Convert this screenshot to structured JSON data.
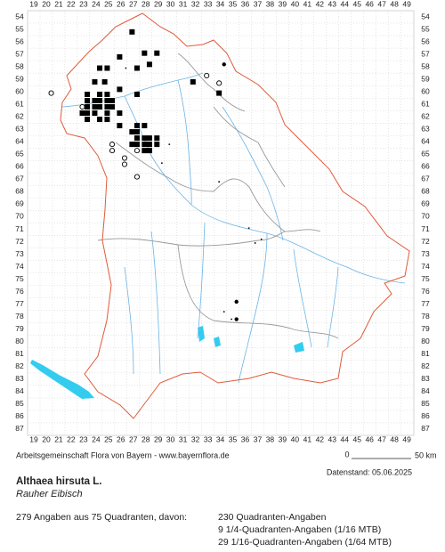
{
  "map": {
    "columns": [
      19,
      20,
      21,
      22,
      23,
      24,
      25,
      26,
      27,
      28,
      29,
      30,
      31,
      32,
      33,
      34,
      35,
      36,
      37,
      38,
      39,
      40,
      41,
      42,
      43,
      44,
      45,
      46,
      47,
      48,
      49
    ],
    "rows": [
      54,
      55,
      56,
      57,
      58,
      59,
      60,
      61,
      62,
      63,
      64,
      65,
      66,
      67,
      68,
      69,
      70,
      71,
      72,
      73,
      74,
      75,
      76,
      77,
      78,
      79,
      80,
      81,
      82,
      83,
      84,
      85,
      86,
      87
    ],
    "records": [
      {
        "kind": "square",
        "col": 26.9,
        "row": 55.2
      },
      {
        "kind": "square",
        "col": 27.9,
        "row": 56.9
      },
      {
        "kind": "square",
        "col": 28.9,
        "row": 56.9
      },
      {
        "kind": "square",
        "col": 25.9,
        "row": 57.2
      },
      {
        "kind": "square",
        "col": 28.3,
        "row": 57.8
      },
      {
        "kind": "square",
        "col": 24.3,
        "row": 58.1
      },
      {
        "kind": "square",
        "col": 24.9,
        "row": 58.1
      },
      {
        "kind": "square",
        "col": 27.3,
        "row": 58.1
      },
      {
        "kind": "square",
        "col": 31.8,
        "row": 59.2
      },
      {
        "kind": "square",
        "col": 24.7,
        "row": 59.2
      },
      {
        "kind": "square",
        "col": 23.9,
        "row": 59.2
      },
      {
        "kind": "square",
        "col": 23.3,
        "row": 60.2
      },
      {
        "kind": "square",
        "col": 24.3,
        "row": 60.2
      },
      {
        "kind": "square",
        "col": 24.9,
        "row": 60.2
      },
      {
        "kind": "square",
        "col": 25.9,
        "row": 59.8
      },
      {
        "kind": "square",
        "col": 27.3,
        "row": 60.2
      },
      {
        "kind": "square",
        "col": 23.3,
        "row": 60.7
      },
      {
        "kind": "square",
        "col": 23.9,
        "row": 60.7
      },
      {
        "kind": "square",
        "col": 24.3,
        "row": 60.7
      },
      {
        "kind": "square",
        "col": 24.9,
        "row": 60.7
      },
      {
        "kind": "square",
        "col": 25.3,
        "row": 60.7
      },
      {
        "kind": "square",
        "col": 23.3,
        "row": 61.2
      },
      {
        "kind": "square",
        "col": 23.9,
        "row": 61.2
      },
      {
        "kind": "square",
        "col": 24.3,
        "row": 61.2
      },
      {
        "kind": "square",
        "col": 24.9,
        "row": 61.2
      },
      {
        "kind": "square",
        "col": 25.3,
        "row": 61.2
      },
      {
        "kind": "square",
        "col": 22.9,
        "row": 61.7
      },
      {
        "kind": "square",
        "col": 23.3,
        "row": 61.7
      },
      {
        "kind": "square",
        "col": 23.9,
        "row": 61.7
      },
      {
        "kind": "square",
        "col": 24.9,
        "row": 61.7
      },
      {
        "kind": "square",
        "col": 25.9,
        "row": 61.7
      },
      {
        "kind": "square",
        "col": 23.3,
        "row": 62.2
      },
      {
        "kind": "square",
        "col": 24.3,
        "row": 62.2
      },
      {
        "kind": "square",
        "col": 25.9,
        "row": 62.7
      },
      {
        "kind": "square",
        "col": 24.9,
        "row": 62.2
      },
      {
        "kind": "square",
        "col": 26.9,
        "row": 63.2
      },
      {
        "kind": "square",
        "col": 27.3,
        "row": 63.2
      },
      {
        "kind": "square",
        "col": 27.3,
        "row": 62.7
      },
      {
        "kind": "square",
        "col": 27.9,
        "row": 62.7
      },
      {
        "kind": "square",
        "col": 27.3,
        "row": 63.7
      },
      {
        "kind": "square",
        "col": 27.9,
        "row": 63.7
      },
      {
        "kind": "square",
        "col": 28.3,
        "row": 63.7
      },
      {
        "kind": "square",
        "col": 28.9,
        "row": 63.7
      },
      {
        "kind": "square",
        "col": 27.3,
        "row": 64.2
      },
      {
        "kind": "square",
        "col": 27.9,
        "row": 64.2
      },
      {
        "kind": "square",
        "col": 28.3,
        "row": 64.2
      },
      {
        "kind": "square",
        "col": 28.9,
        "row": 64.2
      },
      {
        "kind": "square",
        "col": 26.9,
        "row": 64.2
      },
      {
        "kind": "square",
        "col": 27.9,
        "row": 64.7
      },
      {
        "kind": "square",
        "col": 28.3,
        "row": 64.7
      },
      {
        "kind": "square",
        "col": 33.9,
        "row": 60.1
      },
      {
        "kind": "circle",
        "col": 20.4,
        "row": 60.1
      },
      {
        "kind": "circle",
        "col": 22.9,
        "row": 61.2
      },
      {
        "kind": "circle",
        "col": 25.3,
        "row": 64.2
      },
      {
        "kind": "circle",
        "col": 25.3,
        "row": 64.7
      },
      {
        "kind": "circle",
        "col": 26.3,
        "row": 65.3
      },
      {
        "kind": "circle",
        "col": 26.3,
        "row": 65.8
      },
      {
        "kind": "circle",
        "col": 27.3,
        "row": 66.8
      },
      {
        "kind": "circle",
        "col": 27.3,
        "row": 64.7
      },
      {
        "kind": "circle",
        "col": 32.9,
        "row": 58.7
      },
      {
        "kind": "circle",
        "col": 33.9,
        "row": 59.3
      },
      {
        "kind": "dot",
        "col": 34.3,
        "row": 57.8
      },
      {
        "kind": "dot",
        "col": 35.3,
        "row": 76.8
      },
      {
        "kind": "dot",
        "col": 35.3,
        "row": 78.2
      },
      {
        "kind": "small",
        "col": 28.9,
        "row": 56.8
      },
      {
        "kind": "small",
        "col": 29.9,
        "row": 64.2
      },
      {
        "kind": "small",
        "col": 29.3,
        "row": 65.7
      },
      {
        "kind": "small",
        "col": 33.9,
        "row": 67.2
      },
      {
        "kind": "small",
        "col": 36.3,
        "row": 70.9
      },
      {
        "kind": "small",
        "col": 36.8,
        "row": 72.1
      },
      {
        "kind": "small",
        "col": 37.3,
        "row": 71.8
      },
      {
        "kind": "small",
        "col": 34.9,
        "row": 78.2
      },
      {
        "kind": "small",
        "col": 34.3,
        "row": 77.6
      },
      {
        "kind": "small",
        "col": 26.4,
        "row": 58.1
      }
    ]
  },
  "footer": {
    "credit": "Arbeitsgemeinschaft Flora von Bayern - www.bayernflora.de",
    "scale_start": "0",
    "scale_end": "50 km",
    "date": "Datenstand: 05.06.2025",
    "species": "Althaea hirsuta L.",
    "common_name": "Rauher Eibisch",
    "summary": "279 Angaben aus 75 Quadranten, davon:",
    "counts": [
      "230 Quadranten-Angaben",
      "9 1/4-Quadranten-Angaben (1/16 MTB)",
      "29 1/16-Quadranten-Angaben (1/64 MTB)"
    ]
  }
}
